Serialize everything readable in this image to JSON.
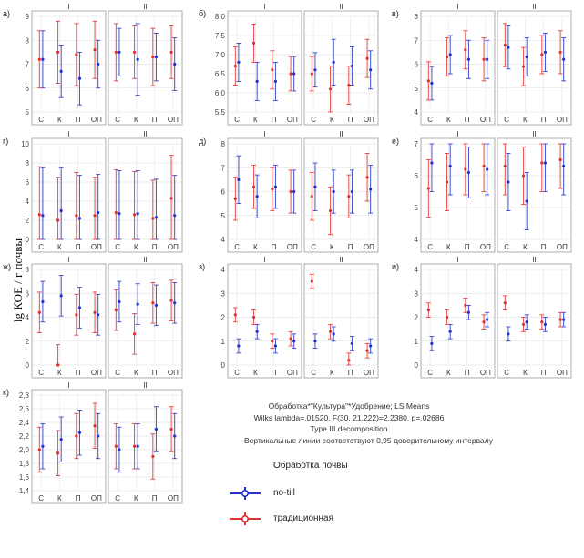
{
  "y_axis_label": "lg КОЕ / г почвы",
  "legend": {
    "title": "Обработка почвы",
    "items": [
      {
        "label": "no-till",
        "color": "#2233cc"
      },
      {
        "label": "традиционная",
        "color": "#e03030"
      }
    ]
  },
  "stats": {
    "line1": "Обработка*\"Культура\"*Удобрение; LS Means",
    "line2": "Wilks lambda=.01520, F(30, 21.222)=2.2380, p=.02686",
    "line3": "Type III decomposition",
    "line4": "Вертикальные линии соответствуют 0,95 доверительному интервалу"
  },
  "chart_data": [
    {
      "label": "а)",
      "type": "scatter",
      "groups": [
        "I",
        "II"
      ],
      "categories": [
        "С",
        "К",
        "П",
        "ОП"
      ],
      "ylim": [
        5,
        9
      ],
      "yticks": [
        5,
        6,
        7,
        8,
        9
      ],
      "grid": true,
      "series": [
        {
          "name": "no-till",
          "values": [
            [
              7.2,
              6.7,
              6.4,
              7.0
            ],
            [
              7.5,
              7.2,
              7.3,
              7.0
            ]
          ],
          "ci": [
            [
              1.2,
              1.1,
              1.1,
              1.0
            ],
            [
              1.0,
              1.5,
              1.0,
              1.1
            ]
          ]
        },
        {
          "name": "традиционная",
          "values": [
            [
              7.2,
              7.5,
              7.4,
              7.6
            ],
            [
              7.5,
              7.5,
              7.3,
              7.5
            ]
          ],
          "ci": [
            [
              1.2,
              1.3,
              1.3,
              1.2
            ],
            [
              1.2,
              1.1,
              1.2,
              1.1
            ]
          ]
        }
      ]
    },
    {
      "label": "б)",
      "type": "scatter",
      "groups": [
        "I",
        "II"
      ],
      "categories": [
        "С",
        "К",
        "П",
        "ОП"
      ],
      "ylim": [
        5.5,
        8.0
      ],
      "yticks": [
        5.5,
        6.0,
        6.5,
        7.0,
        7.5,
        8.0
      ],
      "grid": true,
      "series": [
        {
          "name": "no-till",
          "values": [
            [
              6.8,
              6.3,
              6.3,
              6.5
            ],
            [
              6.6,
              6.8,
              6.7,
              6.6
            ]
          ],
          "ci": [
            [
              0.5,
              0.5,
              0.5,
              0.45
            ],
            [
              0.45,
              0.6,
              0.5,
              0.5
            ]
          ]
        },
        {
          "name": "традиционная",
          "values": [
            [
              6.7,
              7.3,
              6.6,
              6.5
            ],
            [
              6.5,
              6.1,
              6.2,
              6.9
            ]
          ],
          "ci": [
            [
              0.5,
              0.5,
              0.5,
              0.45
            ],
            [
              0.45,
              0.6,
              0.5,
              0.5
            ]
          ]
        }
      ]
    },
    {
      "label": "в)",
      "type": "scatter",
      "groups": [
        "I",
        "II"
      ],
      "categories": [
        "С",
        "К",
        "П",
        "ОП"
      ],
      "ylim": [
        4,
        8
      ],
      "yticks": [
        4,
        5,
        6,
        7,
        8
      ],
      "grid": true,
      "series": [
        {
          "name": "no-till",
          "values": [
            [
              5.2,
              6.4,
              6.2,
              6.2
            ],
            [
              6.7,
              6.3,
              6.5,
              6.2
            ]
          ],
          "ci": [
            [
              0.7,
              0.8,
              0.8,
              0.8
            ],
            [
              0.9,
              0.8,
              0.8,
              0.9
            ]
          ]
        },
        {
          "name": "традиционная",
          "values": [
            [
              5.3,
              6.3,
              6.6,
              6.2
            ],
            [
              6.8,
              5.9,
              6.4,
              6.5
            ]
          ],
          "ci": [
            [
              0.8,
              0.8,
              0.8,
              0.9
            ],
            [
              0.9,
              0.8,
              0.8,
              0.9
            ]
          ]
        }
      ]
    },
    {
      "label": "г)",
      "type": "scatter",
      "groups": [
        "I",
        "II"
      ],
      "categories": [
        "С",
        "К",
        "П",
        "ОП"
      ],
      "ylim": [
        0,
        10
      ],
      "yticks": [
        0,
        2,
        4,
        6,
        8,
        10
      ],
      "grid": true,
      "series": [
        {
          "name": "no-till",
          "values": [
            [
              2.5,
              3.0,
              2.2,
              2.8
            ],
            [
              2.7,
              2.7,
              2.3,
              2.5
            ]
          ],
          "ci": [
            [
              5.0,
              4.5,
              4.5,
              4.0
            ],
            [
              4.5,
              4.5,
              4.0,
              4.2
            ]
          ]
        },
        {
          "name": "традиционная",
          "values": [
            [
              2.6,
              2.0,
              2.5,
              2.5
            ],
            [
              2.8,
              2.6,
              2.2,
              4.3
            ]
          ],
          "ci": [
            [
              5.0,
              4.5,
              4.5,
              4.0
            ],
            [
              4.5,
              4.5,
              4.0,
              4.5
            ]
          ]
        }
      ]
    },
    {
      "label": "д)",
      "type": "scatter",
      "groups": [
        "I",
        "II"
      ],
      "categories": [
        "С",
        "К",
        "П",
        "ОП"
      ],
      "ylim": [
        4,
        8
      ],
      "yticks": [
        4,
        5,
        6,
        7,
        8
      ],
      "grid": true,
      "series": [
        {
          "name": "no-till",
          "values": [
            [
              6.5,
              5.8,
              6.2,
              6.0
            ],
            [
              6.2,
              6.0,
              6.0,
              6.1
            ]
          ],
          "ci": [
            [
              1.0,
              0.9,
              0.9,
              0.9
            ],
            [
              1.0,
              0.9,
              0.9,
              1.0
            ]
          ]
        },
        {
          "name": "традиционная",
          "values": [
            [
              5.7,
              6.2,
              6.1,
              6.0
            ],
            [
              5.8,
              5.2,
              5.8,
              6.6
            ]
          ],
          "ci": [
            [
              0.9,
              0.9,
              0.9,
              0.9
            ],
            [
              1.0,
              1.0,
              0.9,
              1.0
            ]
          ]
        }
      ]
    },
    {
      "label": "е)",
      "type": "scatter",
      "groups": [
        "I",
        "II"
      ],
      "categories": [
        "С",
        "К",
        "П",
        "ОП"
      ],
      "ylim": [
        4,
        7
      ],
      "yticks": [
        4,
        5,
        6,
        7
      ],
      "grid": true,
      "series": [
        {
          "name": "no-till",
          "values": [
            [
              6.4,
              6.3,
              6.1,
              6.2
            ],
            [
              5.8,
              5.2,
              6.4,
              6.3
            ]
          ],
          "ci": [
            [
              0.9,
              0.9,
              0.8,
              0.8
            ],
            [
              0.9,
              0.9,
              0.9,
              0.9
            ]
          ]
        },
        {
          "name": "традиционная",
          "values": [
            [
              5.6,
              5.8,
              6.2,
              6.3
            ],
            [
              6.3,
              6.0,
              6.4,
              6.5
            ]
          ],
          "ci": [
            [
              0.9,
              0.9,
              0.8,
              0.8
            ],
            [
              0.9,
              0.9,
              0.9,
              0.9
            ]
          ]
        }
      ]
    },
    {
      "label": "ж)",
      "type": "scatter",
      "groups": [
        "I",
        "II"
      ],
      "categories": [
        "С",
        "К",
        "П",
        "ОП"
      ],
      "ylim": [
        0,
        8
      ],
      "yticks": [
        0,
        2,
        4,
        6,
        8
      ],
      "grid": true,
      "series": [
        {
          "name": "no-till",
          "values": [
            [
              5.3,
              5.8,
              4.8,
              4.2
            ],
            [
              5.3,
              5.1,
              5.0,
              5.2
            ]
          ],
          "ci": [
            [
              1.7,
              1.7,
              1.7,
              1.7
            ],
            [
              1.7,
              1.7,
              1.7,
              1.7
            ]
          ]
        },
        {
          "name": "традиционная",
          "values": [
            [
              4.4,
              0.0,
              4.2,
              4.4
            ],
            [
              4.6,
              2.6,
              5.2,
              5.4
            ]
          ],
          "ci": [
            [
              1.7,
              1.7,
              1.7,
              1.7
            ],
            [
              1.7,
              1.7,
              1.7,
              1.7
            ]
          ]
        }
      ]
    },
    {
      "label": "з)",
      "type": "scatter",
      "groups": [
        "I",
        "II"
      ],
      "categories": [
        "С",
        "К",
        "П",
        "ОП"
      ],
      "ylim": [
        0,
        4
      ],
      "yticks": [
        0,
        1,
        2,
        3,
        4
      ],
      "grid": true,
      "series": [
        {
          "name": "no-till",
          "values": [
            [
              0.8,
              1.4,
              0.8,
              1.0
            ],
            [
              1.0,
              1.3,
              0.9,
              0.8
            ]
          ],
          "ci": [
            [
              0.3,
              0.3,
              0.3,
              0.3
            ],
            [
              0.3,
              0.3,
              0.3,
              0.3
            ]
          ]
        },
        {
          "name": "традиционная",
          "values": [
            [
              2.1,
              2.0,
              1.0,
              1.1
            ],
            [
              3.5,
              1.4,
              0.2,
              0.6
            ]
          ],
          "ci": [
            [
              0.3,
              0.3,
              0.3,
              0.3
            ],
            [
              0.3,
              0.3,
              0.3,
              0.3
            ]
          ]
        }
      ]
    },
    {
      "label": "и)",
      "type": "scatter",
      "groups": [
        "I",
        "II"
      ],
      "categories": [
        "С",
        "К",
        "П",
        "ОП"
      ],
      "ylim": [
        0,
        4
      ],
      "yticks": [
        0,
        1,
        2,
        3,
        4
      ],
      "grid": true,
      "series": [
        {
          "name": "no-till",
          "values": [
            [
              0.9,
              1.4,
              2.2,
              1.9
            ],
            [
              1.3,
              1.8,
              1.7,
              1.9
            ]
          ],
          "ci": [
            [
              0.3,
              0.3,
              0.3,
              0.3
            ],
            [
              0.3,
              0.3,
              0.3,
              0.3
            ]
          ]
        },
        {
          "name": "традиционная",
          "values": [
            [
              2.3,
              2.0,
              2.5,
              1.8
            ],
            [
              2.6,
              1.7,
              1.8,
              1.9
            ]
          ],
          "ci": [
            [
              0.3,
              0.3,
              0.3,
              0.3
            ],
            [
              0.3,
              0.3,
              0.3,
              0.3
            ]
          ]
        }
      ]
    },
    {
      "label": "к)",
      "type": "scatter",
      "groups": [
        "I",
        "II"
      ],
      "categories": [
        "С",
        "К",
        "П",
        "ОП"
      ],
      "ylim": [
        1.4,
        2.8
      ],
      "yticks": [
        1.4,
        1.6,
        1.8,
        2.0,
        2.2,
        2.4,
        2.6,
        2.8
      ],
      "grid": true,
      "series": [
        {
          "name": "no-till",
          "values": [
            [
              2.05,
              2.15,
              2.25,
              2.2
            ],
            [
              2.0,
              2.05,
              2.3,
              2.2
            ]
          ],
          "ci": [
            [
              0.33,
              0.33,
              0.33,
              0.33
            ],
            [
              0.33,
              0.33,
              0.33,
              0.33
            ]
          ]
        },
        {
          "name": "традиционная",
          "values": [
            [
              2.0,
              1.95,
              2.2,
              2.35
            ],
            [
              2.05,
              2.05,
              1.9,
              2.3
            ]
          ],
          "ci": [
            [
              0.33,
              0.33,
              0.33,
              0.33
            ],
            [
              0.33,
              0.33,
              0.33,
              0.33
            ]
          ]
        }
      ]
    }
  ]
}
